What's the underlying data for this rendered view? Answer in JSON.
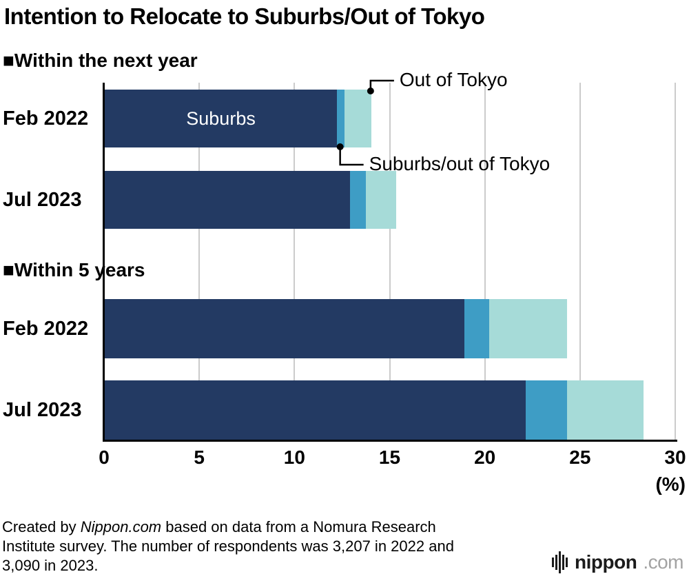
{
  "title": "Intention to Relocate to Suburbs/Out of Tokyo",
  "chart_data": {
    "type": "bar",
    "orientation": "horizontal",
    "title": "Intention to Relocate to Suburbs/Out of Tokyo",
    "xlabel_unit": "(%)",
    "xlim": [
      0,
      30
    ],
    "xticks": [
      0,
      5,
      10,
      15,
      20,
      25,
      30
    ],
    "grid": true,
    "series_order": [
      "suburbs",
      "suburbs_out",
      "out"
    ],
    "series_labels": {
      "suburbs": "Suburbs",
      "suburbs_out": "Suburbs/out of Tokyo",
      "out": "Out of Tokyo"
    },
    "colors": {
      "suburbs": "#233A63",
      "suburbs_out": "#3E9DC5",
      "out": "#A6DBD8",
      "grid": "#CBCBCB",
      "axis": "#000000"
    },
    "groups": [
      {
        "label": "■Within the next year",
        "rows": [
          {
            "label": "Feb 2022",
            "suburbs": 12.2,
            "suburbs_out": 0.4,
            "out": 1.4
          },
          {
            "label": "Jul 2023",
            "suburbs": 12.9,
            "suburbs_out": 0.8,
            "out": 1.6
          }
        ]
      },
      {
        "label": "■Within 5 years",
        "rows": [
          {
            "label": "Feb 2022",
            "suburbs": 18.9,
            "suburbs_out": 1.3,
            "out": 4.1
          },
          {
            "label": "Jul 2023",
            "suburbs": 22.1,
            "suburbs_out": 2.2,
            "out": 4.0
          }
        ]
      }
    ],
    "annotations": {
      "out_label": "Out of Tokyo",
      "suburbs_out_label": "Suburbs/out of Tokyo",
      "suburbs_inbar_label": "Suburbs"
    }
  },
  "footer": {
    "line1_pre": "Created by ",
    "line1_italic": "Nippon.com",
    "line1_post": " based on data from a Nomura Research",
    "line2": "Institute survey. The number of respondents was 3,207 in 2022 and",
    "line3": "3,090 in 2023."
  },
  "logo": {
    "name": "nippon",
    "domain": ".com"
  }
}
